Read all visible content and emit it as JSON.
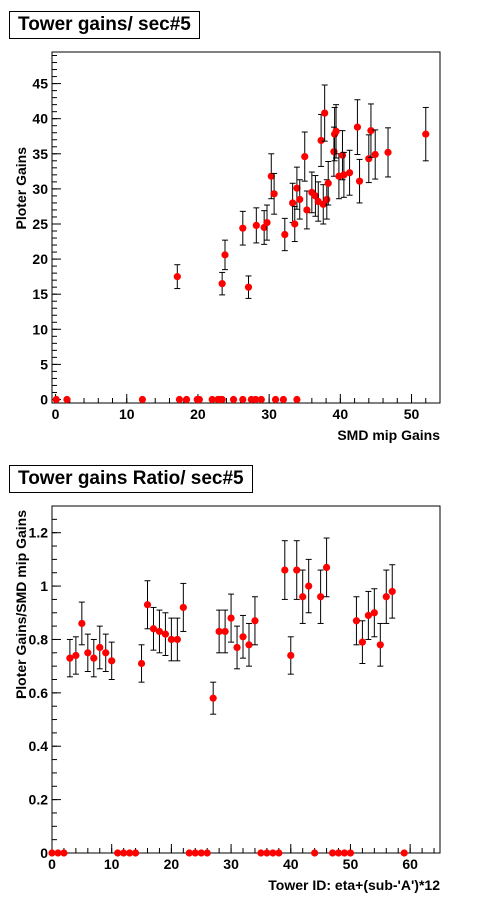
{
  "chart_data": [
    {
      "type": "scatter",
      "title": "Tower gains/ sec#5",
      "xlabel": "SMD mip Gains",
      "ylabel": "Ploter Gains",
      "xlim": [
        -0.5,
        54
      ],
      "ylim": [
        -0.5,
        49.5
      ],
      "xticks": [
        0,
        10,
        20,
        30,
        40,
        50
      ],
      "yticks": [
        0,
        5,
        10,
        15,
        20,
        25,
        30,
        35,
        40,
        45
      ],
      "grid": false,
      "marker_color": "#ff0000",
      "points": [
        {
          "x": 0.1,
          "y": 0
        },
        {
          "x": 1.6,
          "y": 0
        },
        {
          "x": 12.2,
          "y": 0
        },
        {
          "x": 17.1,
          "y": 17.5,
          "err": 1.7
        },
        {
          "x": 17.4,
          "y": 0
        },
        {
          "x": 18.4,
          "y": 0
        },
        {
          "x": 19.9,
          "y": 0
        },
        {
          "x": 20.2,
          "y": 0
        },
        {
          "x": 22.0,
          "y": 0
        },
        {
          "x": 22.8,
          "y": 0
        },
        {
          "x": 23.0,
          "y": 0
        },
        {
          "x": 23.4,
          "y": 0
        },
        {
          "x": 23.4,
          "y": 16.5,
          "err": 1.6
        },
        {
          "x": 23.8,
          "y": 20.6,
          "err": 2.1
        },
        {
          "x": 25.0,
          "y": 0
        },
        {
          "x": 26.3,
          "y": 0
        },
        {
          "x": 26.3,
          "y": 24.4,
          "err": 2.4
        },
        {
          "x": 27.1,
          "y": 16.0,
          "err": 1.6
        },
        {
          "x": 27.5,
          "y": 0
        },
        {
          "x": 28.1,
          "y": 0
        },
        {
          "x": 28.2,
          "y": 24.8,
          "err": 2.5
        },
        {
          "x": 28.9,
          "y": 0
        },
        {
          "x": 29.3,
          "y": 24.5,
          "err": 2.4
        },
        {
          "x": 29.7,
          "y": 25.2,
          "err": 2.5
        },
        {
          "x": 30.3,
          "y": 31.8,
          "err": 3.2
        },
        {
          "x": 30.7,
          "y": 29.3,
          "err": 2.9
        },
        {
          "x": 30.9,
          "y": 0
        },
        {
          "x": 32.0,
          "y": 0
        },
        {
          "x": 32.2,
          "y": 23.5,
          "err": 2.3
        },
        {
          "x": 33.3,
          "y": 28.0,
          "err": 2.8
        },
        {
          "x": 33.6,
          "y": 25.0,
          "err": 2.5
        },
        {
          "x": 33.9,
          "y": 0
        },
        {
          "x": 33.9,
          "y": 30.1,
          "err": 3.0
        },
        {
          "x": 34.3,
          "y": 28.5,
          "err": 2.8
        },
        {
          "x": 35.0,
          "y": 34.6,
          "err": 3.5
        },
        {
          "x": 35.3,
          "y": 27.0,
          "err": 2.7
        },
        {
          "x": 36.0,
          "y": 29.5,
          "err": 2.9
        },
        {
          "x": 36.5,
          "y": 29.0,
          "err": 2.9
        },
        {
          "x": 36.9,
          "y": 28.2,
          "err": 2.8
        },
        {
          "x": 37.3,
          "y": 36.9,
          "err": 3.7
        },
        {
          "x": 37.6,
          "y": 27.8,
          "err": 2.8
        },
        {
          "x": 37.8,
          "y": 40.8,
          "err": 4.0
        },
        {
          "x": 38.1,
          "y": 28.5,
          "err": 2.8
        },
        {
          "x": 38.3,
          "y": 30.8,
          "err": 3.1
        },
        {
          "x": 39.1,
          "y": 35.3,
          "err": 3.5
        },
        {
          "x": 39.2,
          "y": 37.8,
          "err": 3.8
        },
        {
          "x": 39.4,
          "y": 38.2,
          "err": 3.8
        },
        {
          "x": 39.8,
          "y": 31.8,
          "err": 3.2
        },
        {
          "x": 40.3,
          "y": 34.8,
          "err": 3.5
        },
        {
          "x": 40.5,
          "y": 32.0,
          "err": 3.2
        },
        {
          "x": 41.3,
          "y": 32.3,
          "err": 3.2
        },
        {
          "x": 42.4,
          "y": 38.8,
          "err": 3.9
        },
        {
          "x": 42.7,
          "y": 31.1,
          "err": 3.1
        },
        {
          "x": 44.0,
          "y": 34.3,
          "err": 3.4
        },
        {
          "x": 44.3,
          "y": 38.3,
          "err": 3.8
        },
        {
          "x": 44.9,
          "y": 34.9,
          "err": 3.5
        },
        {
          "x": 46.7,
          "y": 35.2,
          "err": 3.5
        },
        {
          "x": 52.0,
          "y": 37.8,
          "err": 3.8
        }
      ]
    },
    {
      "type": "scatter",
      "title": "Tower gains Ratio/ sec#5",
      "xlabel": "Tower ID: eta+(sub-'A')*12",
      "ylabel": "Ploter Gains/SMD mip Gains",
      "xlim": [
        0,
        65
      ],
      "ylim": [
        0,
        1.3
      ],
      "xticks": [
        0,
        10,
        20,
        30,
        40,
        50,
        60
      ],
      "yticks": [
        0,
        0.2,
        0.4,
        0.6,
        0.8,
        1,
        1.2
      ],
      "grid": false,
      "marker_color": "#ff0000",
      "points": [
        {
          "x": 0,
          "y": 0
        },
        {
          "x": 1,
          "y": 0
        },
        {
          "x": 2,
          "y": 0
        },
        {
          "x": 3,
          "y": 0.73,
          "err": 0.07
        },
        {
          "x": 4,
          "y": 0.74,
          "err": 0.07
        },
        {
          "x": 5,
          "y": 0.86,
          "err": 0.08
        },
        {
          "x": 6,
          "y": 0.75,
          "err": 0.07
        },
        {
          "x": 7,
          "y": 0.73,
          "err": 0.07
        },
        {
          "x": 8,
          "y": 0.77,
          "err": 0.08
        },
        {
          "x": 9,
          "y": 0.75,
          "err": 0.07
        },
        {
          "x": 10,
          "y": 0.72,
          "err": 0.07
        },
        {
          "x": 11,
          "y": 0
        },
        {
          "x": 12,
          "y": 0
        },
        {
          "x": 13,
          "y": 0
        },
        {
          "x": 14,
          "y": 0
        },
        {
          "x": 15,
          "y": 0.71,
          "err": 0.07
        },
        {
          "x": 16,
          "y": 0.93,
          "err": 0.09
        },
        {
          "x": 17,
          "y": 0.84,
          "err": 0.08
        },
        {
          "x": 18,
          "y": 0.83,
          "err": 0.08
        },
        {
          "x": 19,
          "y": 0.82,
          "err": 0.08
        },
        {
          "x": 20,
          "y": 0.8,
          "err": 0.08
        },
        {
          "x": 21,
          "y": 0.8,
          "err": 0.08
        },
        {
          "x": 22,
          "y": 0.92,
          "err": 0.09
        },
        {
          "x": 23,
          "y": 0
        },
        {
          "x": 24,
          "y": 0
        },
        {
          "x": 25,
          "y": 0
        },
        {
          "x": 26,
          "y": 0
        },
        {
          "x": 27,
          "y": 0.58,
          "err": 0.06
        },
        {
          "x": 28,
          "y": 0.83,
          "err": 0.08
        },
        {
          "x": 29,
          "y": 0.83,
          "err": 0.08
        },
        {
          "x": 30,
          "y": 0.88,
          "err": 0.09
        },
        {
          "x": 31,
          "y": 0.77,
          "err": 0.08
        },
        {
          "x": 32,
          "y": 0.81,
          "err": 0.08
        },
        {
          "x": 33,
          "y": 0.78,
          "err": 0.08
        },
        {
          "x": 34,
          "y": 0.87,
          "err": 0.09
        },
        {
          "x": 35,
          "y": 0
        },
        {
          "x": 36,
          "y": 0
        },
        {
          "x": 37,
          "y": 0
        },
        {
          "x": 38,
          "y": 0
        },
        {
          "x": 39,
          "y": 1.06,
          "err": 0.11
        },
        {
          "x": 40,
          "y": 0.74,
          "err": 0.07
        },
        {
          "x": 41,
          "y": 1.06,
          "err": 0.11
        },
        {
          "x": 42,
          "y": 0.96,
          "err": 0.1
        },
        {
          "x": 43,
          "y": 1.0,
          "err": 0.1
        },
        {
          "x": 44,
          "y": 0
        },
        {
          "x": 45,
          "y": 0.96,
          "err": 0.1
        },
        {
          "x": 46,
          "y": 1.07,
          "err": 0.11
        },
        {
          "x": 47,
          "y": 0
        },
        {
          "x": 48,
          "y": 0
        },
        {
          "x": 49,
          "y": 0
        },
        {
          "x": 50,
          "y": 0
        },
        {
          "x": 51,
          "y": 0.87,
          "err": 0.09
        },
        {
          "x": 52,
          "y": 0.79,
          "err": 0.08
        },
        {
          "x": 53,
          "y": 0.89,
          "err": 0.09
        },
        {
          "x": 54,
          "y": 0.9,
          "err": 0.09
        },
        {
          "x": 55,
          "y": 0.78,
          "err": 0.08
        },
        {
          "x": 56,
          "y": 0.96,
          "err": 0.1
        },
        {
          "x": 57,
          "y": 0.98,
          "err": 0.1
        },
        {
          "x": 59,
          "y": 0
        }
      ]
    }
  ]
}
